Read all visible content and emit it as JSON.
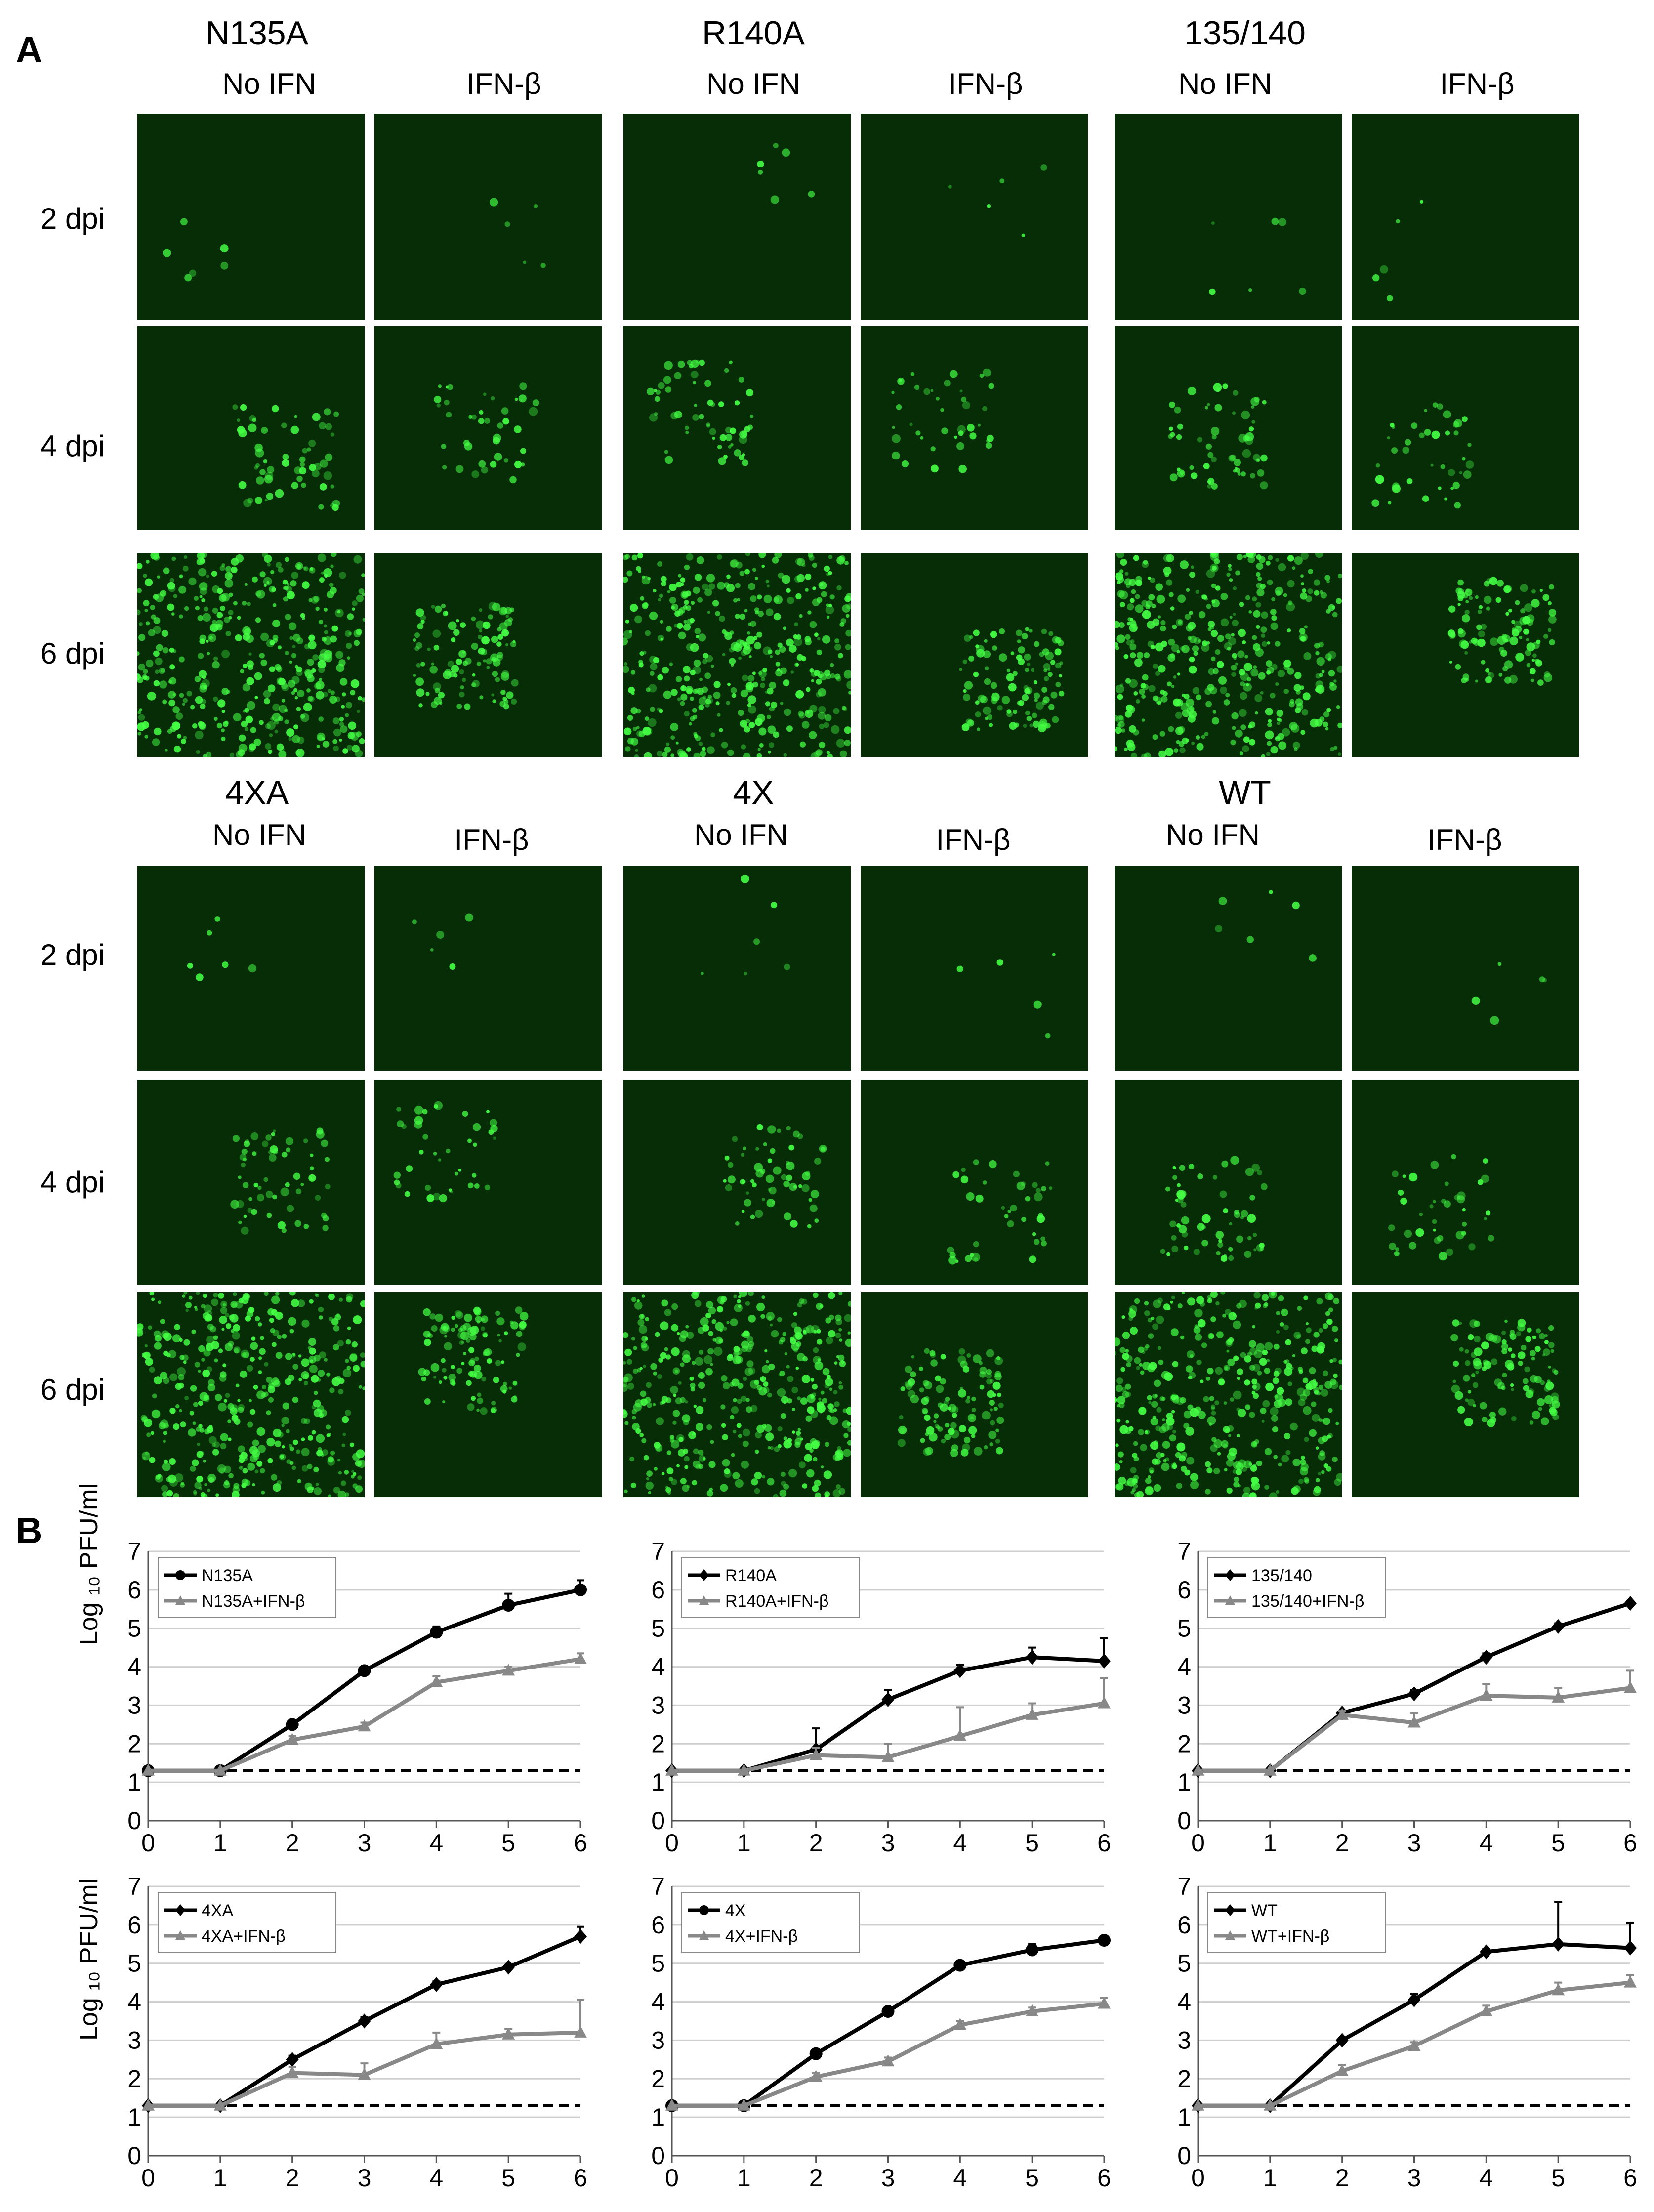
{
  "figure": {
    "panel_a_label": "A",
    "panel_b_label": "B",
    "column_labels": {
      "no_ifn": "No IFN",
      "ifn": "IFN-β"
    },
    "row_labels": [
      "2 dpi",
      "4 dpi",
      "6 dpi"
    ],
    "groups_top": [
      "N135A",
      "R140A",
      "135/140"
    ],
    "groups_bottom": [
      "4XA",
      "4X",
      "WT"
    ]
  },
  "colors": {
    "micro_bg": "#062d06",
    "fluor": "#44ff44",
    "black_series": "#000000",
    "gray_series": "#888888"
  },
  "ylabel": "Log ₁₀ PFU/ml",
  "chart_data": [
    {
      "type": "line",
      "title": "",
      "marker": "circle",
      "x": [
        0,
        1,
        2,
        3,
        4,
        5,
        6
      ],
      "xlim": [
        0,
        6
      ],
      "ylim": [
        0,
        7
      ],
      "series": [
        {
          "name": "N135A",
          "values": [
            1.3,
            1.3,
            2.5,
            3.9,
            4.9,
            5.6,
            6.0
          ],
          "err": [
            0,
            0,
            0.1,
            0.1,
            0.15,
            0.3,
            0.25
          ]
        },
        {
          "name": "N135A+IFN-β",
          "values": [
            1.3,
            1.3,
            2.1,
            2.45,
            3.6,
            3.9,
            4.2
          ],
          "err": [
            0,
            0,
            0.1,
            0.1,
            0.15,
            0.1,
            0.15
          ]
        }
      ],
      "detection_limit": 1.3
    },
    {
      "type": "line",
      "title": "",
      "marker": "diamond",
      "x": [
        0,
        1,
        2,
        3,
        4,
        5,
        6
      ],
      "xlim": [
        0,
        6
      ],
      "ylim": [
        0,
        7
      ],
      "series": [
        {
          "name": "R140A",
          "values": [
            1.3,
            1.3,
            1.85,
            3.15,
            3.9,
            4.25,
            4.15
          ],
          "err": [
            0,
            0,
            0.55,
            0.25,
            0.15,
            0.25,
            0.6
          ]
        },
        {
          "name": "R140A+IFN-β",
          "values": [
            1.3,
            1.3,
            1.7,
            1.65,
            2.2,
            2.75,
            3.05
          ],
          "err": [
            0,
            0,
            0.2,
            0.35,
            0.75,
            0.3,
            0.65
          ]
        }
      ],
      "detection_limit": 1.3
    },
    {
      "type": "line",
      "title": "",
      "marker": "diamond",
      "x": [
        0,
        1,
        2,
        3,
        4,
        5,
        6
      ],
      "xlim": [
        0,
        6
      ],
      "ylim": [
        0,
        7
      ],
      "series": [
        {
          "name": "135/140",
          "values": [
            1.3,
            1.3,
            2.8,
            3.3,
            4.25,
            5.05,
            5.65
          ],
          "err": [
            0,
            0,
            0.05,
            0.1,
            0.1,
            0.08,
            0.06
          ]
        },
        {
          "name": "135/140+IFN-β",
          "values": [
            1.3,
            1.3,
            2.75,
            2.55,
            3.25,
            3.2,
            3.45
          ],
          "err": [
            0,
            0,
            0.1,
            0.25,
            0.3,
            0.25,
            0.45
          ]
        }
      ],
      "detection_limit": 1.3
    },
    {
      "type": "line",
      "title": "",
      "marker": "diamond",
      "x": [
        0,
        1,
        2,
        3,
        4,
        5,
        6
      ],
      "xlim": [
        0,
        6
      ],
      "ylim": [
        0,
        7
      ],
      "series": [
        {
          "name": "4XA",
          "values": [
            1.3,
            1.3,
            2.5,
            3.5,
            4.45,
            4.9,
            5.7
          ],
          "err": [
            0,
            0,
            0.1,
            0.1,
            0.08,
            0.06,
            0.25
          ]
        },
        {
          "name": "4XA+IFN-β",
          "values": [
            1.3,
            1.3,
            2.15,
            2.1,
            2.9,
            3.15,
            3.2
          ],
          "err": [
            0,
            0,
            0.15,
            0.3,
            0.3,
            0.15,
            0.85
          ]
        }
      ],
      "detection_limit": 1.3
    },
    {
      "type": "line",
      "title": "",
      "marker": "circle",
      "x": [
        0,
        1,
        2,
        3,
        4,
        5,
        6
      ],
      "xlim": [
        0,
        6
      ],
      "ylim": [
        0,
        7
      ],
      "series": [
        {
          "name": "4X",
          "values": [
            1.3,
            1.3,
            2.65,
            3.75,
            4.95,
            5.35,
            5.6
          ],
          "err": [
            0,
            0,
            0.08,
            0.08,
            0.1,
            0.15,
            0.08
          ]
        },
        {
          "name": "4X+IFN-β",
          "values": [
            1.3,
            1.3,
            2.05,
            2.45,
            3.4,
            3.75,
            3.95
          ],
          "err": [
            0,
            0,
            0.1,
            0.1,
            0.1,
            0.1,
            0.15
          ]
        }
      ],
      "detection_limit": 1.3
    },
    {
      "type": "line",
      "title": "",
      "marker": "diamond",
      "x": [
        0,
        1,
        2,
        3,
        4,
        5,
        6
      ],
      "xlim": [
        0,
        6
      ],
      "ylim": [
        0,
        7
      ],
      "series": [
        {
          "name": "WT",
          "values": [
            1.3,
            1.3,
            3.0,
            4.05,
            5.3,
            5.5,
            5.4
          ],
          "err": [
            0,
            0,
            0.05,
            0.15,
            0.08,
            1.1,
            0.65
          ]
        },
        {
          "name": "WT+IFN-β",
          "values": [
            1.3,
            1.3,
            2.2,
            2.85,
            3.75,
            4.3,
            4.5
          ],
          "err": [
            0,
            0,
            0.15,
            0.1,
            0.15,
            0.2,
            0.2
          ]
        }
      ],
      "detection_limit": 1.3
    }
  ]
}
